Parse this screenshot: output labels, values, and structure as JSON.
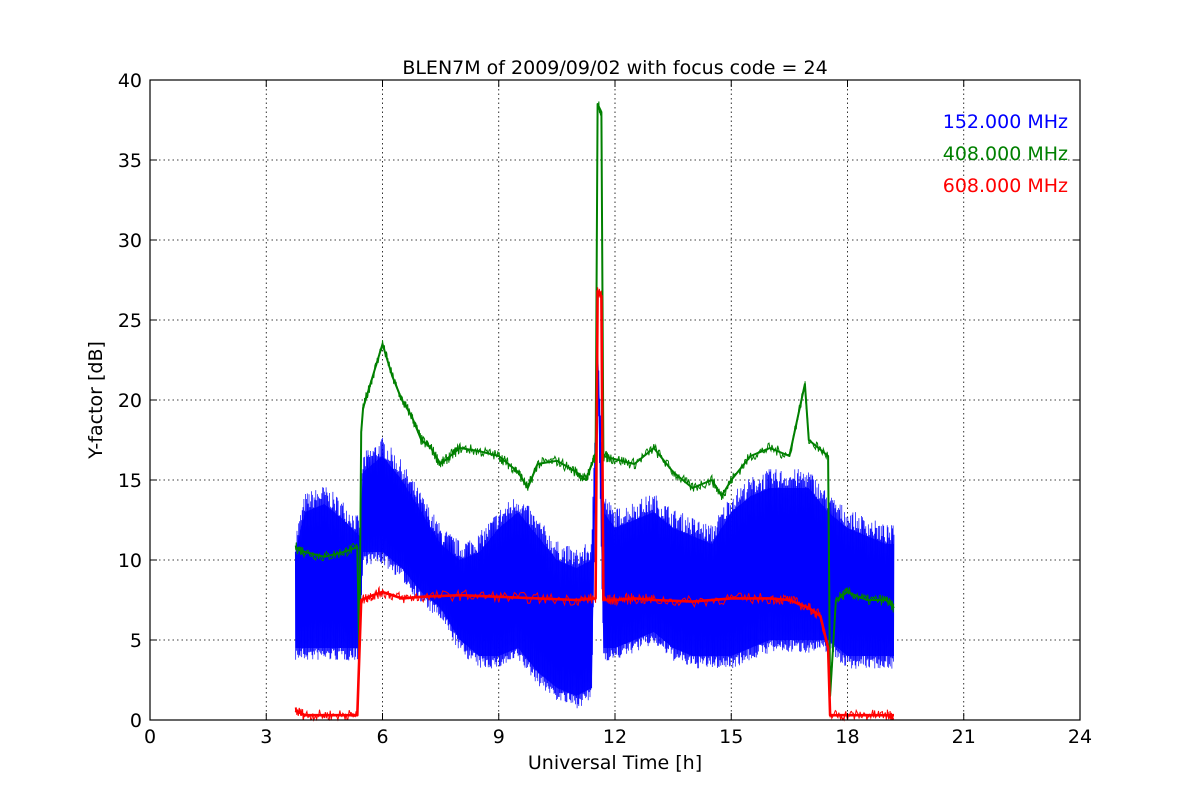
{
  "chart_data": {
    "type": "line",
    "title": "BLEN7M of 2009/09/02 with focus code = 24",
    "xlabel": "Universal Time [h]",
    "ylabel": "Y-factor [dB]",
    "xlim": [
      0,
      24
    ],
    "ylim": [
      0,
      40
    ],
    "xticks": [
      0,
      3,
      6,
      9,
      12,
      15,
      18,
      21,
      24
    ],
    "yticks": [
      0,
      5,
      10,
      15,
      20,
      25,
      30,
      35,
      40
    ],
    "grid": true,
    "legend_position": "top-right",
    "series": [
      {
        "name": "152.000 MHz",
        "color": "#0000ff",
        "band": true,
        "upper": [
          [
            3.75,
            10.5
          ],
          [
            4.0,
            13.0
          ],
          [
            4.5,
            13.5
          ],
          [
            5.0,
            12.5
          ],
          [
            5.4,
            11.5
          ],
          [
            5.5,
            15.5
          ],
          [
            6.0,
            16.5
          ],
          [
            6.5,
            15.0
          ],
          [
            7.0,
            13.0
          ],
          [
            7.5,
            11.0
          ],
          [
            8.0,
            10.0
          ],
          [
            8.5,
            10.5
          ],
          [
            9.0,
            12.0
          ],
          [
            9.5,
            13.0
          ],
          [
            10.0,
            11.5
          ],
          [
            10.5,
            10.0
          ],
          [
            11.0,
            9.5
          ],
          [
            11.4,
            10.0
          ],
          [
            11.55,
            24.0
          ],
          [
            11.7,
            13.0
          ],
          [
            12.0,
            12.0
          ],
          [
            12.5,
            12.5
          ],
          [
            13.0,
            13.0
          ],
          [
            13.5,
            12.0
          ],
          [
            14.0,
            11.5
          ],
          [
            14.5,
            11.0
          ],
          [
            15.0,
            13.0
          ],
          [
            15.5,
            14.0
          ],
          [
            16.0,
            14.5
          ],
          [
            16.5,
            14.5
          ],
          [
            17.0,
            14.5
          ],
          [
            17.5,
            13.0
          ],
          [
            18.0,
            12.0
          ],
          [
            18.5,
            11.5
          ],
          [
            19.0,
            11.0
          ],
          [
            19.2,
            11.0
          ]
        ],
        "lower": [
          [
            3.75,
            4.5
          ],
          [
            4.0,
            4.5
          ],
          [
            4.5,
            4.5
          ],
          [
            5.0,
            4.5
          ],
          [
            5.4,
            4.5
          ],
          [
            5.5,
            10.5
          ],
          [
            6.0,
            10.5
          ],
          [
            6.5,
            9.5
          ],
          [
            7.0,
            8.0
          ],
          [
            7.5,
            7.0
          ],
          [
            8.0,
            5.0
          ],
          [
            8.5,
            4.0
          ],
          [
            9.0,
            4.0
          ],
          [
            9.5,
            4.5
          ],
          [
            10.0,
            3.0
          ],
          [
            10.5,
            2.0
          ],
          [
            11.0,
            1.5
          ],
          [
            11.4,
            2.0
          ],
          [
            11.55,
            22.0
          ],
          [
            11.7,
            4.5
          ],
          [
            12.0,
            4.5
          ],
          [
            12.5,
            5.0
          ],
          [
            13.0,
            5.5
          ],
          [
            13.5,
            4.5
          ],
          [
            14.0,
            4.0
          ],
          [
            14.5,
            4.0
          ],
          [
            15.0,
            4.0
          ],
          [
            15.5,
            4.5
          ],
          [
            16.0,
            5.0
          ],
          [
            16.5,
            5.0
          ],
          [
            17.0,
            5.0
          ],
          [
            17.5,
            5.0
          ],
          [
            18.0,
            4.0
          ],
          [
            18.5,
            4.0
          ],
          [
            19.0,
            4.0
          ],
          [
            19.2,
            4.0
          ]
        ]
      },
      {
        "name": "408.000 MHz",
        "color": "#008000",
        "values": [
          [
            3.75,
            10.8
          ],
          [
            4.0,
            10.5
          ],
          [
            4.5,
            10.2
          ],
          [
            5.0,
            10.5
          ],
          [
            5.35,
            10.8
          ],
          [
            5.4,
            4.0
          ],
          [
            5.45,
            18.0
          ],
          [
            5.5,
            19.5
          ],
          [
            5.75,
            21.5
          ],
          [
            6.0,
            23.5
          ],
          [
            6.25,
            21.5
          ],
          [
            6.5,
            20.0
          ],
          [
            6.75,
            19.0
          ],
          [
            7.0,
            17.5
          ],
          [
            7.25,
            17.0
          ],
          [
            7.5,
            16.0
          ],
          [
            7.75,
            16.5
          ],
          [
            8.0,
            17.0
          ],
          [
            8.5,
            16.8
          ],
          [
            9.0,
            16.5
          ],
          [
            9.25,
            16.0
          ],
          [
            9.5,
            15.5
          ],
          [
            9.75,
            14.5
          ],
          [
            10.0,
            16.0
          ],
          [
            10.5,
            16.2
          ],
          [
            11.0,
            15.5
          ],
          [
            11.25,
            15.0
          ],
          [
            11.4,
            16.0
          ],
          [
            11.5,
            16.5
          ],
          [
            11.55,
            38.5
          ],
          [
            11.65,
            38.0
          ],
          [
            11.7,
            16.5
          ],
          [
            12.0,
            16.3
          ],
          [
            12.5,
            16.0
          ],
          [
            13.0,
            17.0
          ],
          [
            13.5,
            15.5
          ],
          [
            14.0,
            14.5
          ],
          [
            14.5,
            15.0
          ],
          [
            14.75,
            14.0
          ],
          [
            15.0,
            15.0
          ],
          [
            15.5,
            16.5
          ],
          [
            16.0,
            17.0
          ],
          [
            16.5,
            16.5
          ],
          [
            16.9,
            21.0
          ],
          [
            17.0,
            17.5
          ],
          [
            17.5,
            16.5
          ],
          [
            17.55,
            1.5
          ],
          [
            17.7,
            7.5
          ],
          [
            18.0,
            8.0
          ],
          [
            18.5,
            7.5
          ],
          [
            19.0,
            7.5
          ],
          [
            19.2,
            7.0
          ]
        ]
      },
      {
        "name": "608.000 MHz",
        "color": "#ff0000",
        "values": [
          [
            3.75,
            0.6
          ],
          [
            4.0,
            0.3
          ],
          [
            4.5,
            0.3
          ],
          [
            5.0,
            0.3
          ],
          [
            5.35,
            0.3
          ],
          [
            5.45,
            7.5
          ],
          [
            5.75,
            7.8
          ],
          [
            6.0,
            8.0
          ],
          [
            6.5,
            7.6
          ],
          [
            7.0,
            7.7
          ],
          [
            8.0,
            7.8
          ],
          [
            9.0,
            7.7
          ],
          [
            10.0,
            7.6
          ],
          [
            11.0,
            7.5
          ],
          [
            11.5,
            7.6
          ],
          [
            11.55,
            26.8
          ],
          [
            11.65,
            26.5
          ],
          [
            11.7,
            7.5
          ],
          [
            12.0,
            7.5
          ],
          [
            12.5,
            7.6
          ],
          [
            13.0,
            7.5
          ],
          [
            14.0,
            7.4
          ],
          [
            15.0,
            7.6
          ],
          [
            16.0,
            7.6
          ],
          [
            16.5,
            7.5
          ],
          [
            17.0,
            7.0
          ],
          [
            17.3,
            6.5
          ],
          [
            17.5,
            4.5
          ],
          [
            17.55,
            0.3
          ],
          [
            18.0,
            0.3
          ],
          [
            18.5,
            0.3
          ],
          [
            19.0,
            0.3
          ],
          [
            19.2,
            0.3
          ]
        ]
      }
    ]
  }
}
